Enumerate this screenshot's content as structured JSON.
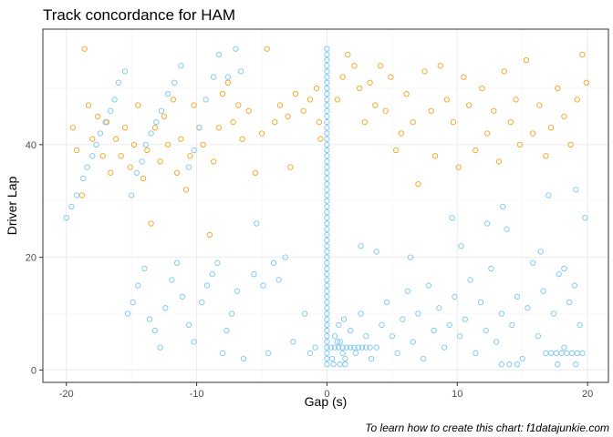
{
  "chart_data": {
    "type": "scatter",
    "title": "Track concordance for  HAM",
    "xlabel": "Gap (s)",
    "ylabel": "Driver Lap",
    "caption": "To learn how to create this chart: f1datajunkie.com",
    "xlim": [
      -21.8,
      21.6
    ],
    "ylim": [
      -2.2,
      60.5
    ],
    "x_ticks": [
      -20,
      -10,
      0,
      10,
      20
    ],
    "y_ticks": [
      0,
      20,
      40
    ],
    "grid": true,
    "legend": "none",
    "colors": {
      "orange": "#f5a31f",
      "blue": "#7cc6f0",
      "panel_border": "#333333",
      "grid_major": "#ebebeb"
    },
    "series": [
      {
        "color": "#f5a31f",
        "points": [
          [
            -18.6,
            57
          ],
          [
            -19.5,
            43
          ],
          [
            -19.2,
            39
          ],
          [
            -18.8,
            31
          ],
          [
            -18.3,
            47
          ],
          [
            -18.0,
            41
          ],
          [
            -17.6,
            45
          ],
          [
            -17.2,
            38
          ],
          [
            -16.9,
            44
          ],
          [
            -16.6,
            35
          ],
          [
            -16.2,
            41
          ],
          [
            -15.8,
            38
          ],
          [
            -15.5,
            43
          ],
          [
            -15.1,
            36
          ],
          [
            -14.8,
            40
          ],
          [
            -14.5,
            47
          ],
          [
            -14.1,
            34
          ],
          [
            -13.8,
            39
          ],
          [
            -13.5,
            26
          ],
          [
            -13.2,
            43
          ],
          [
            -12.8,
            37
          ],
          [
            -12.5,
            45
          ],
          [
            -12.2,
            40
          ],
          [
            -11.8,
            48
          ],
          [
            -11.5,
            35
          ],
          [
            -11.2,
            41
          ],
          [
            -10.8,
            32
          ],
          [
            -10.5,
            38
          ],
          [
            -10.2,
            47
          ],
          [
            -9.8,
            43
          ],
          [
            -9.5,
            40
          ],
          [
            -9.0,
            24
          ],
          [
            -8.7,
            37
          ],
          [
            -8.3,
            43
          ],
          [
            -8.0,
            49
          ],
          [
            -7.6,
            51
          ],
          [
            -7.2,
            44
          ],
          [
            -6.8,
            47
          ],
          [
            -6.5,
            41
          ],
          [
            -6.0,
            46
          ],
          [
            -5.5,
            35
          ],
          [
            -5.0,
            42
          ],
          [
            -4.6,
            57
          ],
          [
            -4.0,
            44
          ],
          [
            -3.6,
            47
          ],
          [
            -3.0,
            45
          ],
          [
            -2.8,
            36
          ],
          [
            -2.4,
            49
          ],
          [
            -1.8,
            46
          ],
          [
            -1.3,
            48
          ],
          [
            -0.8,
            50
          ],
          [
            -0.6,
            44
          ],
          [
            -0.5,
            41
          ],
          [
            0.8,
            48
          ],
          [
            1.2,
            52
          ],
          [
            1.6,
            56
          ],
          [
            2.1,
            54
          ],
          [
            2.5,
            50
          ],
          [
            2.9,
            44
          ],
          [
            3.3,
            51
          ],
          [
            3.7,
            47
          ],
          [
            4.1,
            54
          ],
          [
            4.5,
            46
          ],
          [
            4.9,
            52
          ],
          [
            5.3,
            39
          ],
          [
            5.7,
            42
          ],
          [
            6.1,
            49
          ],
          [
            6.6,
            44
          ],
          [
            7.0,
            33
          ],
          [
            7.5,
            53
          ],
          [
            8.0,
            46
          ],
          [
            8.3,
            38
          ],
          [
            8.7,
            54
          ],
          [
            9.2,
            48
          ],
          [
            9.7,
            44
          ],
          [
            10.1,
            36
          ],
          [
            10.5,
            52
          ],
          [
            10.9,
            47
          ],
          [
            11.4,
            39
          ],
          [
            11.9,
            50
          ],
          [
            12.3,
            42
          ],
          [
            12.8,
            46
          ],
          [
            13.2,
            37
          ],
          [
            13.6,
            53
          ],
          [
            14.1,
            44
          ],
          [
            14.5,
            48
          ],
          [
            14.8,
            40
          ],
          [
            15.3,
            55
          ],
          [
            15.8,
            42
          ],
          [
            16.3,
            47
          ],
          [
            16.8,
            38
          ],
          [
            17.2,
            43
          ],
          [
            17.7,
            50
          ],
          [
            18.2,
            45
          ],
          [
            18.7,
            40
          ],
          [
            19.2,
            48
          ],
          [
            19.6,
            56
          ],
          [
            19.9,
            51
          ]
        ]
      },
      {
        "color": "#7cc6f0",
        "points": [
          [
            -20.0,
            27
          ],
          [
            -19.6,
            29
          ],
          [
            -19.2,
            31
          ],
          [
            -18.7,
            34
          ],
          [
            -18.4,
            36
          ],
          [
            -18.0,
            38
          ],
          [
            -17.7,
            40
          ],
          [
            -17.4,
            42
          ],
          [
            -17.0,
            44
          ],
          [
            -16.6,
            46
          ],
          [
            -16.3,
            48
          ],
          [
            -16.0,
            51
          ],
          [
            -15.5,
            53
          ],
          [
            -15.0,
            31
          ],
          [
            -14.6,
            35
          ],
          [
            -14.2,
            37
          ],
          [
            -13.9,
            40
          ],
          [
            -13.5,
            42
          ],
          [
            -13.1,
            44
          ],
          [
            -12.7,
            46
          ],
          [
            -12.2,
            49
          ],
          [
            -11.7,
            51
          ],
          [
            -11.2,
            54
          ],
          [
            -10.6,
            36
          ],
          [
            -10.2,
            39
          ],
          [
            -9.8,
            43
          ],
          [
            -9.3,
            48
          ],
          [
            -8.7,
            52
          ],
          [
            -8.3,
            56
          ],
          [
            -7.6,
            52
          ],
          [
            -7.0,
            57
          ],
          [
            -6.6,
            53
          ],
          [
            -15.3,
            10
          ],
          [
            -14.9,
            12
          ],
          [
            -14.5,
            15
          ],
          [
            -14.0,
            18
          ],
          [
            -13.6,
            9
          ],
          [
            -13.2,
            7
          ],
          [
            -12.8,
            4
          ],
          [
            -12.4,
            11
          ],
          [
            -11.9,
            16
          ],
          [
            -11.5,
            19
          ],
          [
            -11.1,
            13
          ],
          [
            -10.6,
            8
          ],
          [
            -10.2,
            5
          ],
          [
            -9.6,
            12
          ],
          [
            -9.2,
            15
          ],
          [
            -8.8,
            17
          ],
          [
            -8.4,
            19
          ],
          [
            -8.0,
            3
          ],
          [
            -7.7,
            7
          ],
          [
            -7.3,
            10
          ],
          [
            -6.9,
            14
          ],
          [
            -6.4,
            2
          ],
          [
            -5.6,
            17
          ],
          [
            -4.9,
            15
          ],
          [
            -4.5,
            3
          ],
          [
            -4.1,
            19
          ],
          [
            -3.7,
            16
          ],
          [
            -3.2,
            20
          ],
          [
            -2.6,
            5
          ],
          [
            -1.7,
            10
          ],
          [
            -1.3,
            3
          ],
          [
            -0.9,
            4
          ],
          [
            1.0,
            5
          ],
          [
            1.4,
            2
          ],
          [
            1.8,
            7
          ],
          [
            2.2,
            3
          ],
          [
            2.6,
            10
          ],
          [
            3.0,
            6
          ],
          [
            3.4,
            2
          ],
          [
            3.8,
            4
          ],
          [
            4.2,
            8
          ],
          [
            4.6,
            12
          ],
          [
            5.0,
            6
          ],
          [
            5.4,
            3
          ],
          [
            5.8,
            9
          ],
          [
            6.2,
            14
          ],
          [
            6.6,
            5
          ],
          [
            7.0,
            10
          ],
          [
            7.4,
            2
          ],
          [
            7.8,
            15
          ],
          [
            8.2,
            7
          ],
          [
            8.6,
            11
          ],
          [
            9.0,
            4
          ],
          [
            9.4,
            8
          ],
          [
            9.8,
            13
          ],
          [
            10.2,
            6
          ],
          [
            10.6,
            9
          ],
          [
            11.0,
            16
          ],
          [
            11.4,
            3
          ],
          [
            11.8,
            12
          ],
          [
            12.2,
            7
          ],
          [
            12.6,
            18
          ],
          [
            13.0,
            5
          ],
          [
            13.4,
            10
          ],
          [
            13.8,
            25
          ],
          [
            14.2,
            8
          ],
          [
            14.6,
            13
          ],
          [
            15.0,
            2
          ],
          [
            15.4,
            11
          ],
          [
            15.8,
            19
          ],
          [
            16.2,
            6
          ],
          [
            16.6,
            14
          ],
          [
            17.0,
            31
          ],
          [
            17.4,
            10
          ],
          [
            17.8,
            17
          ],
          [
            18.2,
            4
          ],
          [
            18.6,
            12
          ],
          [
            19.0,
            15
          ],
          [
            19.4,
            8
          ],
          [
            19.8,
            27
          ],
          [
            -5.4,
            26
          ],
          [
            2.6,
            22
          ],
          [
            3.8,
            21
          ],
          [
            6.4,
            20
          ],
          [
            9.6,
            27
          ],
          [
            10.3,
            22
          ],
          [
            12.3,
            26
          ],
          [
            13.5,
            29
          ],
          [
            16.4,
            21
          ],
          [
            18.2,
            18
          ],
          [
            19.1,
            32
          ]
        ]
      }
    ],
    "vertical_column": {
      "color": "#7cc6f0",
      "x": 0,
      "y_from": 1,
      "y_to": 57
    },
    "near_zero_points": [
      [
        0.3,
        4
      ],
      [
        0.6,
        4
      ],
      [
        0.9,
        4
      ],
      [
        1.2,
        4
      ],
      [
        1.5,
        4
      ],
      [
        1.8,
        4
      ],
      [
        2.1,
        4
      ],
      [
        2.4,
        4
      ],
      [
        2.7,
        4
      ],
      [
        3.0,
        4
      ],
      [
        3.3,
        4
      ],
      [
        0.5,
        1
      ],
      [
        1.0,
        1
      ],
      [
        1.4,
        1
      ],
      [
        0.4,
        2
      ],
      [
        0.8,
        5
      ],
      [
        1.2,
        3
      ],
      [
        0.6,
        6
      ],
      [
        1.3,
        9
      ],
      [
        0.9,
        8
      ]
    ],
    "bottom_right_row": [
      [
        13.4,
        1
      ],
      [
        14.0,
        1
      ],
      [
        14.6,
        1
      ],
      [
        16.8,
        3
      ],
      [
        17.2,
        3
      ],
      [
        17.6,
        3
      ],
      [
        18.0,
        3
      ],
      [
        18.4,
        3
      ],
      [
        18.8,
        3
      ],
      [
        19.2,
        3
      ],
      [
        19.6,
        3
      ],
      [
        17.7,
        1
      ],
      [
        19.1,
        1
      ]
    ]
  }
}
